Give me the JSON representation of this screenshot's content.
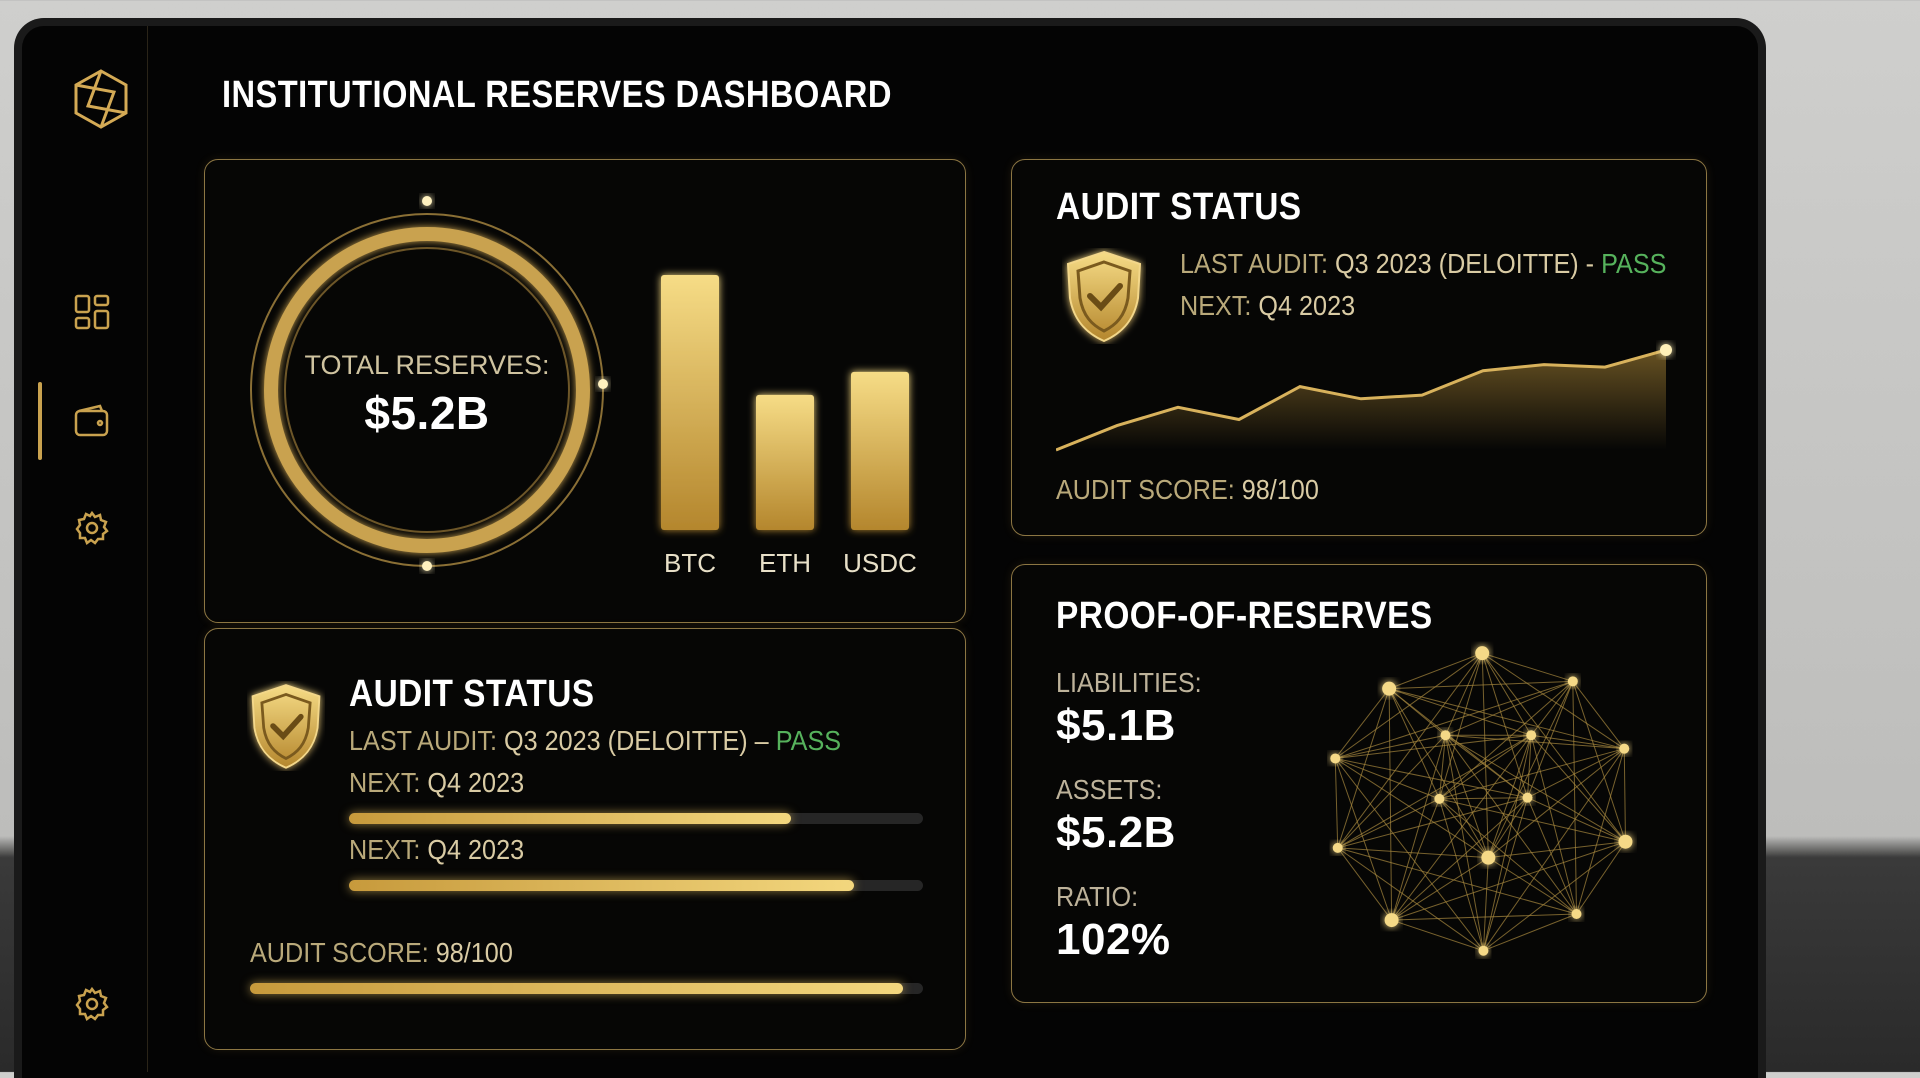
{
  "header": {
    "title": "INSTITUTIONAL RESERVES DASHBOARD"
  },
  "reserves": {
    "label": "TOTAL RESERVES:",
    "value": "$5.2B",
    "assets": [
      "BTC",
      "ETH",
      "USDC"
    ],
    "bar_heights": [
      100,
      53,
      62
    ]
  },
  "audit_summary": {
    "title": "AUDIT STATUS",
    "last_audit_label": "LAST AUDIT:",
    "last_audit": "Q3 2023 (DELOITTE) -",
    "result": "PASS",
    "next_label": "NEXT:",
    "next": "Q4 2023",
    "trend": [
      0,
      20,
      35,
      25,
      52,
      42,
      45,
      65,
      70,
      68,
      82
    ],
    "score_label": "AUDIT SCORE:",
    "score": "98/100"
  },
  "audit_detail": {
    "title": "AUDIT STATUS",
    "last_audit_label": "LAST AUDIT:",
    "last_audit": "Q3 2023 (DELOITTE) –",
    "result": "PASS",
    "rows": [
      {
        "label": "NEXT:",
        "value": "Q4 2023",
        "progress": 77
      },
      {
        "label": "NEXT:",
        "value": "Q4 2023",
        "progress": 88
      },
      {
        "label": "AUDIT SCORE:",
        "value": "98/100",
        "progress": 97
      }
    ]
  },
  "proof": {
    "title": "PROOF-OF-RESERVES",
    "metrics": [
      {
        "label": "LIABILITIES:",
        "value": "$5.1B"
      },
      {
        "label": "ASSETS:",
        "value": "$5.2B"
      },
      {
        "label": "RATIO:",
        "value": "102%"
      }
    ]
  }
}
